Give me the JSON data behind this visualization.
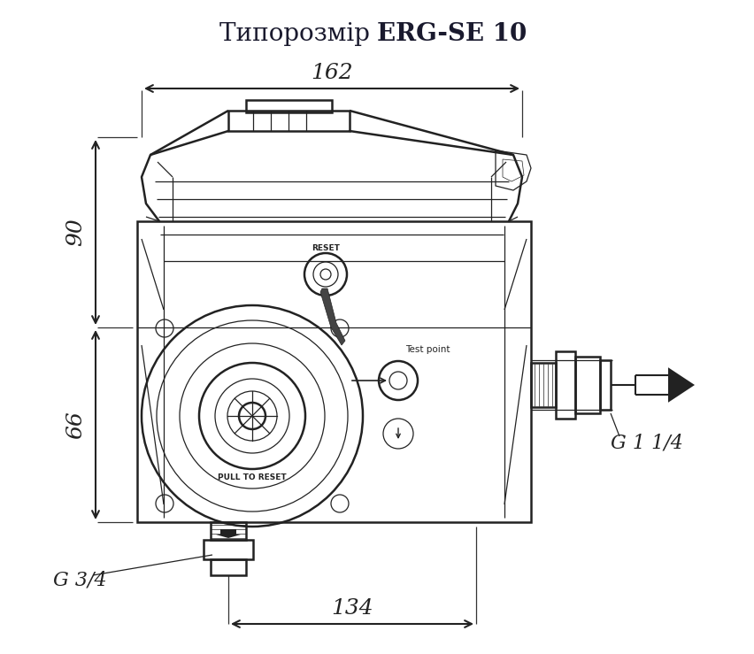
{
  "title_regular": "Типорозмір ",
  "title_bold": "ERG-SE 10",
  "title_fontsize": 20,
  "title_color": "#1a1a2e",
  "bg_color": "#ffffff",
  "line_color": "#222222",
  "dim_162_label": "162",
  "dim_134_label": "134",
  "dim_90_label": "90",
  "dim_66_label": "66",
  "label_G34": "G 3/4",
  "label_G114": "G 1 1/4",
  "label_reset": "RESET",
  "label_test_point": "Test point",
  "label_pull": "PULL TO RESET",
  "fig_width": 8.53,
  "fig_height": 7.39,
  "dpi": 100
}
